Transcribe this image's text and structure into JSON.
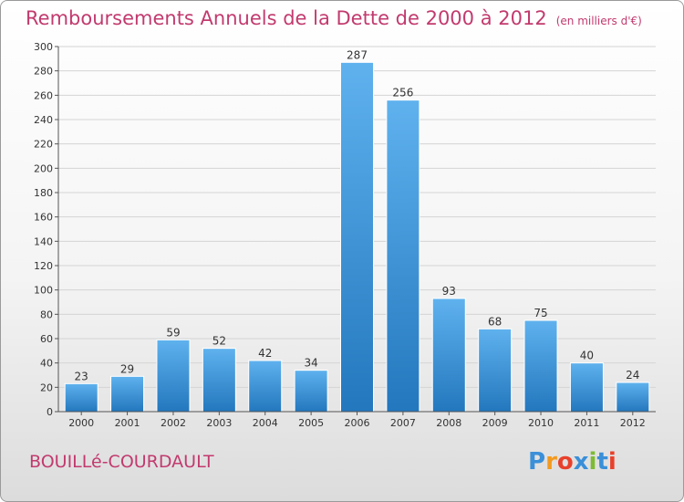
{
  "title": "Remboursements Annuels de la Dette de 2000 à 2012",
  "unit_note": "(en milliers d'€)",
  "commune": "BOUILLé-COURDAULT",
  "logo": {
    "text": "Proxiti",
    "letters": [
      "P",
      "r",
      "o",
      "x",
      "i",
      "t",
      "i"
    ],
    "colors": [
      "#3a8fd8",
      "#f39a1e",
      "#e8402b",
      "#3a8fd8",
      "#7dbb32",
      "#3a8fd8",
      "#e8402b"
    ]
  },
  "chart_data": {
    "type": "bar",
    "title": "Remboursements Annuels de la Dette de 2000 à 2012",
    "categories": [
      "2000",
      "2001",
      "2002",
      "2003",
      "2004",
      "2005",
      "2006",
      "2007",
      "2008",
      "2009",
      "2010",
      "2011",
      "2012"
    ],
    "values": [
      23,
      29,
      59,
      52,
      42,
      34,
      287,
      256,
      93,
      68,
      75,
      40,
      24
    ],
    "ylim": [
      0,
      300
    ],
    "yticks": [
      0,
      20,
      40,
      60,
      80,
      100,
      120,
      140,
      160,
      180,
      200,
      220,
      240,
      260,
      280,
      300
    ],
    "grid": true,
    "bar_color": "#3d93d6"
  }
}
